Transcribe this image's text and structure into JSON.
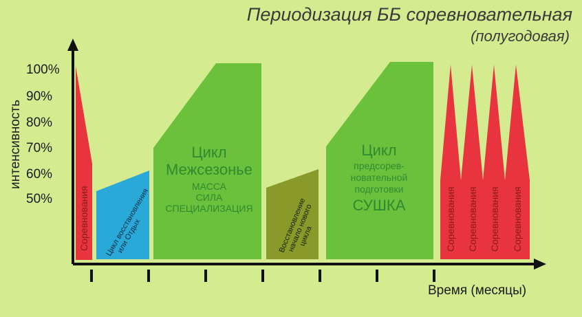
{
  "title": "Периодизация ББ соревновательная",
  "subtitle": "(полугодовая)",
  "y_axis_label": "интенсивность",
  "y_ticks": [
    "100%",
    "90%",
    "80%",
    "70%",
    "60%",
    "50%"
  ],
  "x_axis_label": "Время (месяцы)",
  "colors": {
    "background": "#d4ec8f",
    "competition": "#e8343f",
    "recovery": "#2aa8d8",
    "offseason": "#6cc13c",
    "transition": "#8a9a2a",
    "green_text": "#2f8a2f"
  },
  "blocks": {
    "competition_first": {
      "label": "Соревнования"
    },
    "rest_cycle": {
      "label_line1": "Цикл восстановления",
      "label_line2": "или Отдых"
    },
    "offseason_cycle": {
      "line1": "Цикл",
      "line2": "Межсезонье",
      "line3": "МАССА",
      "line4": "СИЛА",
      "line5": "СПЕЦИАЛИЗАЦИЯ"
    },
    "transition_cycle": {
      "label_line1": "Восстановление",
      "label_line2": "начало нового",
      "label_line3": "цикла"
    },
    "precomp_cycle": {
      "line1": "Цикл",
      "line2": "предсорев-",
      "line3": "новательной",
      "line4": "подготовки",
      "line5": "СУШКА"
    },
    "competitions_final": [
      {
        "label": "Соревнования"
      },
      {
        "label": "Соревнования"
      },
      {
        "label": "Соревнования"
      },
      {
        "label": "Соревнования"
      }
    ]
  }
}
